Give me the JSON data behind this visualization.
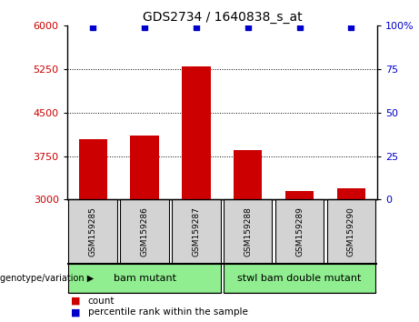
{
  "title": "GDS2734 / 1640838_s_at",
  "samples": [
    "GSM159285",
    "GSM159286",
    "GSM159287",
    "GSM159288",
    "GSM159289",
    "GSM159290"
  ],
  "counts": [
    4050,
    4100,
    5300,
    3850,
    3150,
    3200
  ],
  "bar_color": "#cc0000",
  "dot_color": "#0000cc",
  "ylim_left": [
    3000,
    6000
  ],
  "yticks_left": [
    3000,
    3750,
    4500,
    5250,
    6000
  ],
  "yticks_right": [
    0,
    25,
    50,
    75,
    100
  ],
  "ylim_right": [
    0,
    100
  ],
  "percentile_values": [
    99,
    99,
    99,
    99,
    99,
    99
  ],
  "groups": [
    {
      "label": "bam mutant",
      "start": 0,
      "end": 2,
      "color": "#90ee90"
    },
    {
      "label": "stwl bam double mutant",
      "start": 3,
      "end": 5,
      "color": "#90ee90"
    }
  ],
  "group_label": "genotype/variation",
  "legend_count_label": "count",
  "legend_percentile_label": "percentile rank within the sample",
  "tick_label_color_left": "#cc0000",
  "tick_label_color_right": "#0000cc",
  "sample_box_color": "#d3d3d3",
  "bar_width": 0.55,
  "dot_size": 5
}
